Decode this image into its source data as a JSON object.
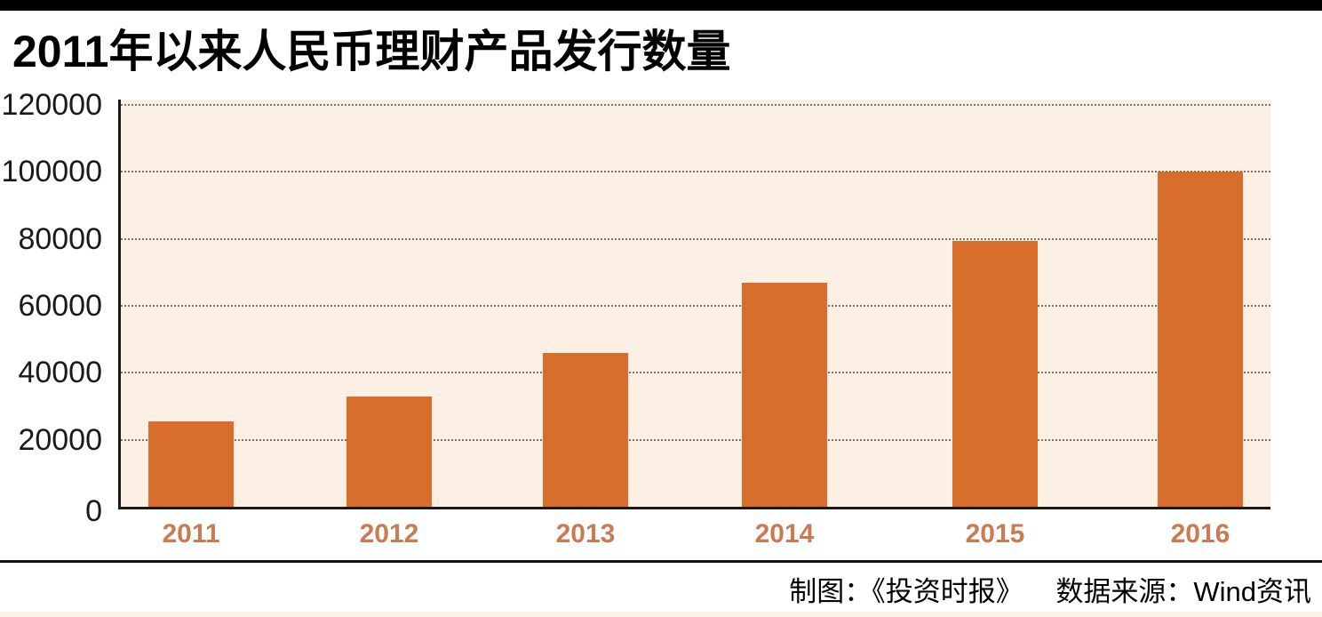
{
  "header": {
    "title": "2011年以来人民币理财产品发行数量"
  },
  "chart_data": {
    "type": "bar",
    "title": "2011年以来人民币理财产品发行数量",
    "categories": [
      "2011",
      "2012",
      "2013",
      "2014",
      "2015",
      "2016"
    ],
    "values": [
      25500,
      33000,
      46000,
      67000,
      79500,
      100000
    ],
    "xlabel": "",
    "ylabel": "",
    "ylim": [
      0,
      120000
    ],
    "yticks": [
      0,
      20000,
      40000,
      60000,
      80000,
      100000,
      120000
    ],
    "grid": "horizontal-dotted",
    "legend": "none",
    "bar_color": "#d76e2c",
    "plot_background": "#fbf0e3"
  },
  "footer": {
    "credit": "制图：《投资时报》",
    "source": "数据来源：Wind资讯"
  },
  "colors": {
    "top_rule": "#000000",
    "title_text": "#000000",
    "plot_background": "#fbf0e3",
    "bar": "#d76e2c",
    "x_tick_label": "#c97b53",
    "y_tick_label": "#1a1a1a",
    "gridline": "#7a7167",
    "axis": "#1a1a1a",
    "footer_rule": "#111111",
    "footer_text": "#000000",
    "bottom_strip": "#fcf3e6"
  }
}
